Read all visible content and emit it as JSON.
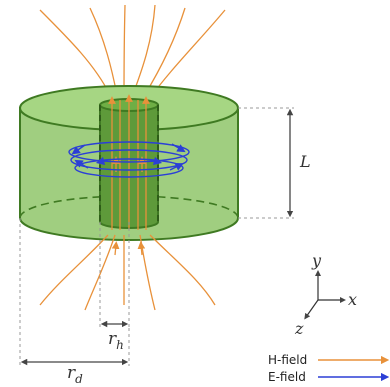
{
  "labels": {
    "L": "L",
    "r_h": "r",
    "r_h_sub": "h",
    "r_d": "r",
    "r_d_sub": "d"
  },
  "axes": {
    "y": "y",
    "x": "x",
    "z": "z"
  },
  "legend": {
    "h_field": "H-field",
    "e_field": "E-field"
  },
  "colors": {
    "h_field": "#e8913a",
    "e_field": "#2b3fd6",
    "outer_cylinder": "#8fc66a",
    "inner_cylinder": "#5e9a3a",
    "outline": "#3f7a22",
    "dimension": "#444444"
  }
}
